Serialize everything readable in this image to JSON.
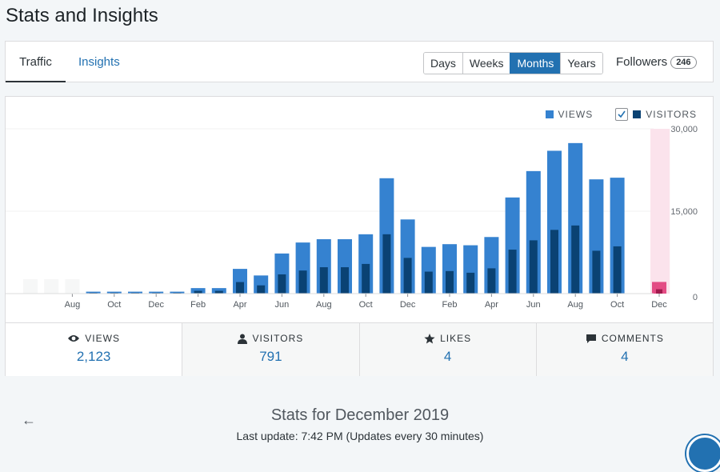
{
  "header": {
    "title": "Stats and Insights"
  },
  "nav": {
    "tabs": [
      {
        "label": "Traffic",
        "active": true
      },
      {
        "label": "Insights",
        "active": false
      }
    ],
    "periods": [
      "Days",
      "Weeks",
      "Months",
      "Years"
    ],
    "active_period": "Months",
    "followers_label": "Followers",
    "followers_count": "246"
  },
  "legend": {
    "views_label": "VIEWS",
    "visitors_label": "VISITORS",
    "visitors_checked": true
  },
  "colors": {
    "views": "#3582d0",
    "visitors": "#0a4273",
    "highlight": "#fbe3ec",
    "highlight_bar": "#e34c84",
    "accent": "#2271b1"
  },
  "chart_data": {
    "type": "bar",
    "categories": [
      "Jun",
      "Jul",
      "Aug",
      "Sep",
      "Oct",
      "Nov",
      "Dec",
      "Jan",
      "Feb",
      "Mar",
      "Apr",
      "May",
      "Jun",
      "Jul",
      "Aug",
      "Sep",
      "Oct",
      "Nov",
      "Dec",
      "Jan",
      "Feb",
      "Mar",
      "Apr",
      "May",
      "Jun",
      "Jul",
      "Aug",
      "Sep",
      "Oct",
      "Nov",
      "Dec"
    ],
    "tick_labels": [
      "",
      "",
      "Aug",
      "",
      "Oct",
      "",
      "Dec",
      "",
      "Feb",
      "",
      "Apr",
      "",
      "Jun",
      "",
      "Aug",
      "",
      "Oct",
      "",
      "Dec",
      "",
      "Feb",
      "",
      "Apr",
      "",
      "Jun",
      "",
      "Aug",
      "",
      "Oct",
      "",
      "Dec"
    ],
    "series": [
      {
        "name": "VIEWS",
        "values": [
          0,
          0,
          0,
          350,
          350,
          350,
          350,
          350,
          1000,
          1000,
          4500,
          3300,
          7300,
          9300,
          9900,
          9900,
          10800,
          21000,
          13500,
          8500,
          9000,
          8800,
          10300,
          17500,
          22300,
          26000,
          27400,
          20800,
          21100,
          0,
          2123
        ]
      },
      {
        "name": "VISITORS",
        "values": [
          0,
          0,
          0,
          150,
          150,
          150,
          150,
          150,
          500,
          500,
          2100,
          1500,
          3500,
          4200,
          4800,
          4800,
          5400,
          10800,
          6500,
          4000,
          4100,
          3800,
          4600,
          8000,
          9700,
          11600,
          12400,
          7800,
          8600,
          0,
          791
        ]
      }
    ],
    "highlight_index": 30,
    "ylim": [
      0,
      30000
    ],
    "y_ticks": [
      "0",
      "15,000",
      "30,000"
    ]
  },
  "stats": [
    {
      "label": "VIEWS",
      "icon": "eye-icon",
      "value": "2,123"
    },
    {
      "label": "VISITORS",
      "icon": "person-icon",
      "value": "791"
    },
    {
      "label": "LIKES",
      "icon": "star-icon",
      "value": "4"
    },
    {
      "label": "COMMENTS",
      "icon": "comment-icon",
      "value": "4"
    }
  ],
  "footer": {
    "stats_for": "Stats for December 2019",
    "last_update": "Last update: 7:42 PM (Updates every 30 minutes)"
  }
}
